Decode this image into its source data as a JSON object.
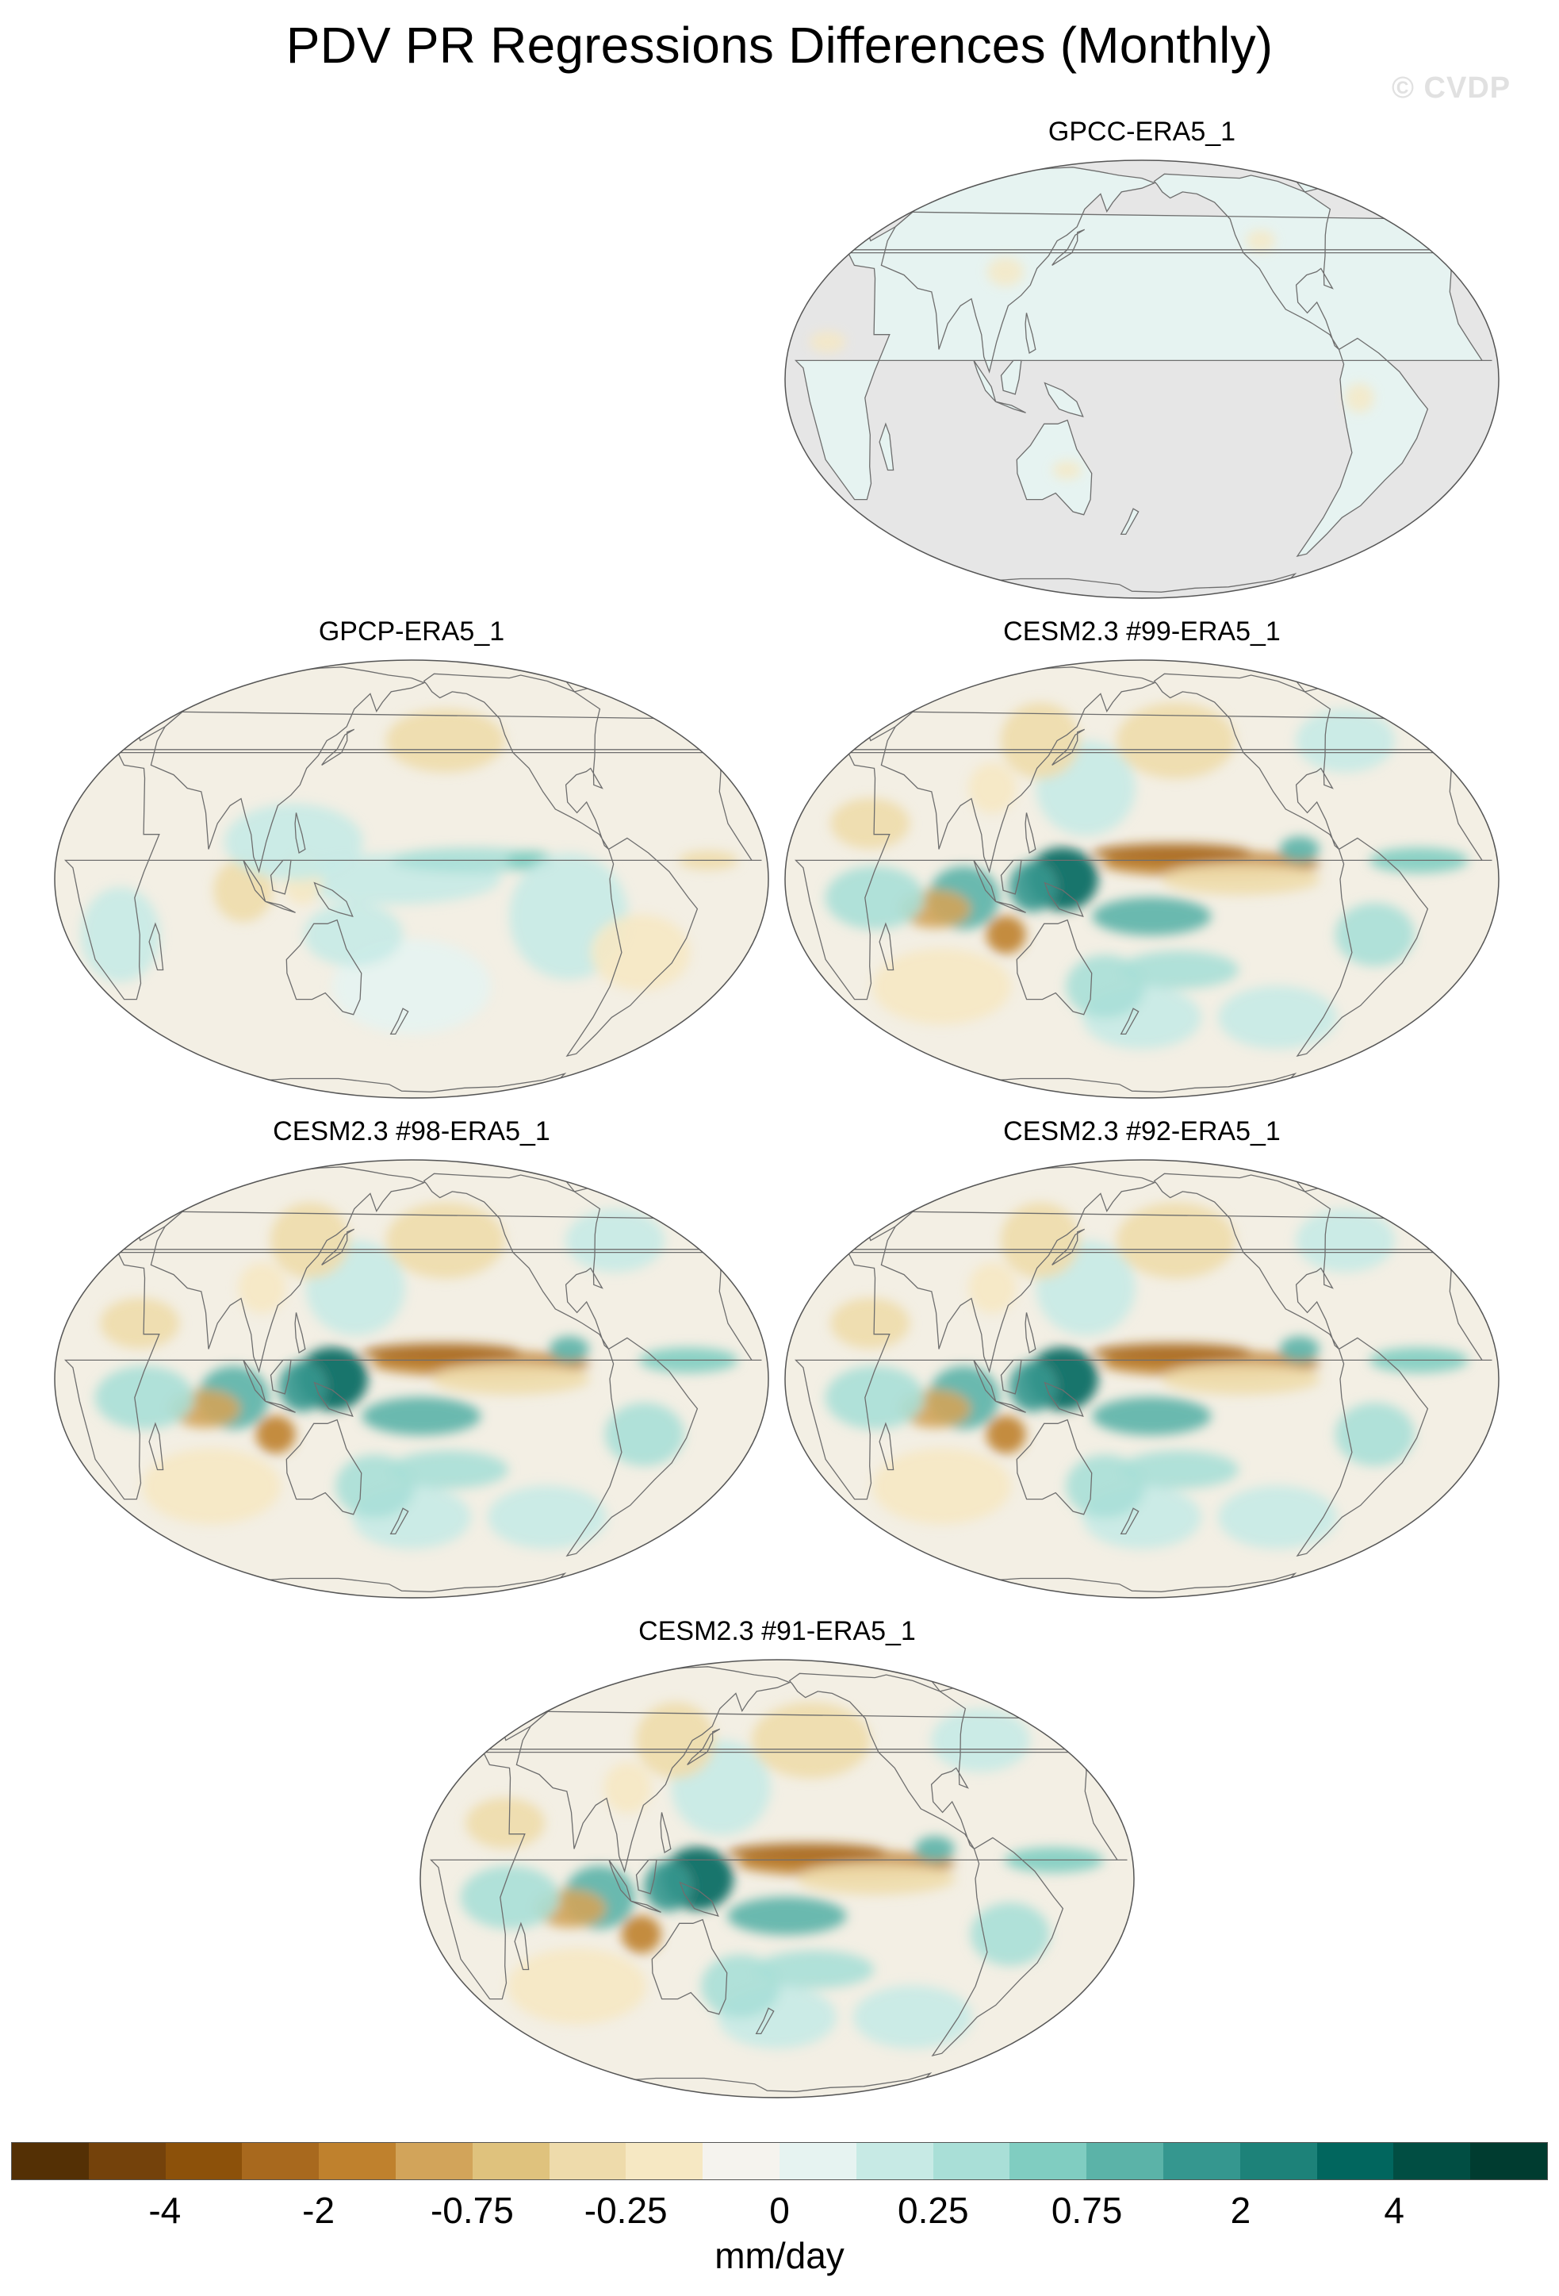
{
  "title": "PDV PR Regressions Differences (Monthly)",
  "watermark": "© CVDP",
  "panels": [
    {
      "title": "GPCC-ERA5_1",
      "ocean_masked": true,
      "pattern": "none"
    },
    {
      "title": "GPCP-ERA5_1",
      "ocean_masked": false,
      "pattern": "weak"
    },
    {
      "title": "CESM2.3 #99-ERA5_1",
      "ocean_masked": false,
      "pattern": "strong"
    },
    {
      "title": "CESM2.3 #98-ERA5_1",
      "ocean_masked": false,
      "pattern": "strong"
    },
    {
      "title": "CESM2.3 #92-ERA5_1",
      "ocean_masked": false,
      "pattern": "strong"
    },
    {
      "title": "CESM2.3 #91-ERA5_1",
      "ocean_masked": false,
      "pattern": "strong"
    }
  ],
  "colorbar": {
    "units": "mm/day",
    "labels": [
      "-4",
      "-2",
      "-0.75",
      "-0.25",
      "0",
      "0.25",
      "0.75",
      "2",
      "4"
    ],
    "colors": [
      "#543005",
      "#74420b",
      "#8c510a",
      "#a8691e",
      "#bf812d",
      "#d2a45a",
      "#dfc27d",
      "#eedbab",
      "#f6e8c3",
      "#f5f3ee",
      "#e6f3f1",
      "#c7eae5",
      "#a9dfd7",
      "#80cdc1",
      "#5bb3a8",
      "#35978f",
      "#1d8279",
      "#01665e",
      "#014e43",
      "#003c30"
    ]
  },
  "colors": {
    "land_fill_masked": "#e6e6e6",
    "coast": "#6e6e6e",
    "background_field": "#f3efe4"
  }
}
